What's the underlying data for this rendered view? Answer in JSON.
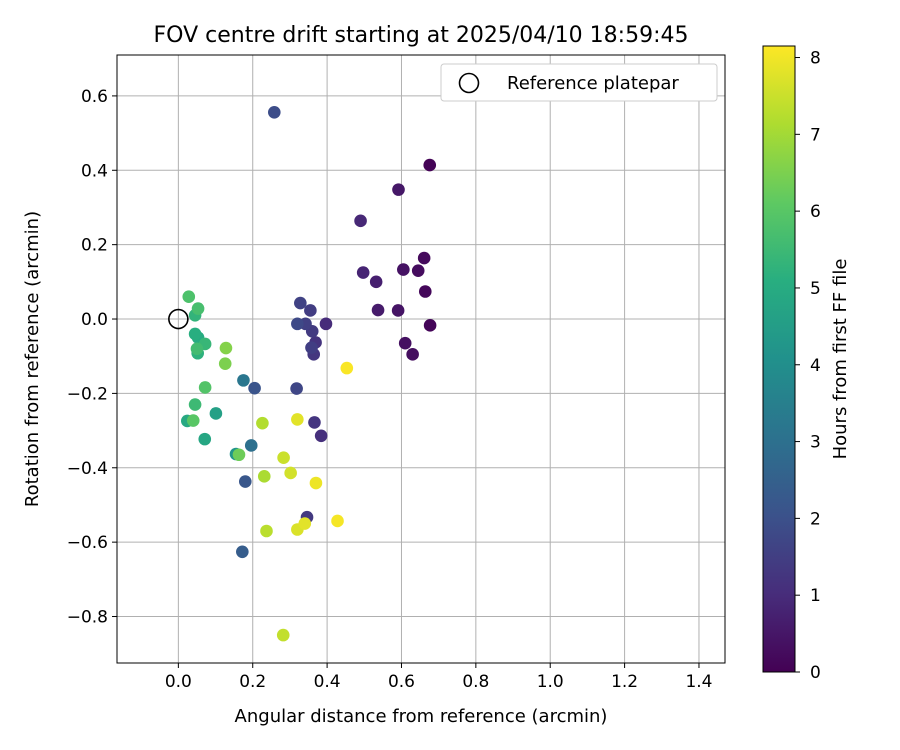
{
  "chart_data": {
    "type": "scatter",
    "title": "FOV centre drift starting at 2025/04/10 18:59:45",
    "xlabel": "Angular distance from reference (arcmin)",
    "ylabel": "Rotation from reference (arcmin)",
    "xlim": [
      -0.165,
      1.47
    ],
    "ylim": [
      -0.925,
      0.71
    ],
    "xticks": [
      0.0,
      0.2,
      0.4,
      0.6,
      0.8,
      1.0,
      1.2,
      1.4
    ],
    "xtick_labels": [
      "0.0",
      "0.2",
      "0.4",
      "0.6",
      "0.8",
      "1.0",
      "1.2",
      "1.4"
    ],
    "yticks": [
      0.6,
      0.4,
      0.2,
      0.0,
      -0.2,
      -0.4,
      -0.6,
      -0.8
    ],
    "ytick_labels": [
      "0.6",
      "0.4",
      "0.2",
      "0.0",
      "−0.2",
      "−0.4",
      "−0.6",
      "−0.8"
    ],
    "grid": true,
    "legend": {
      "placement": "top-right",
      "entries": [
        "Reference platepar"
      ]
    },
    "reference_point": {
      "x": 0.0,
      "y": 0.0,
      "label": "Reference platepar"
    },
    "colorbar": {
      "label": "Hours from first FF file",
      "colormap": "viridis",
      "range": [
        0,
        8.15
      ],
      "ticks": [
        0,
        1,
        2,
        3,
        4,
        5,
        6,
        7,
        8
      ],
      "tick_labels": [
        "0",
        "1",
        "2",
        "3",
        "4",
        "5",
        "6",
        "7",
        "8"
      ]
    },
    "points": [
      {
        "x": 0.676,
        "y": 0.414,
        "c": 0.05
      },
      {
        "x": 0.677,
        "y": -0.017,
        "c": 0.1
      },
      {
        "x": 0.664,
        "y": 0.074,
        "c": 0.15
      },
      {
        "x": 0.661,
        "y": 0.164,
        "c": 0.2
      },
      {
        "x": 0.645,
        "y": 0.13,
        "c": 0.25
      },
      {
        "x": 0.63,
        "y": -0.095,
        "c": 0.3
      },
      {
        "x": 0.61,
        "y": -0.065,
        "c": 0.35
      },
      {
        "x": 0.605,
        "y": 0.133,
        "c": 0.4
      },
      {
        "x": 0.591,
        "y": 0.023,
        "c": 0.45
      },
      {
        "x": 0.592,
        "y": 0.348,
        "c": 0.5
      },
      {
        "x": 0.537,
        "y": 0.024,
        "c": 0.6
      },
      {
        "x": 0.532,
        "y": 0.1,
        "c": 0.7
      },
      {
        "x": 0.497,
        "y": 0.125,
        "c": 0.8
      },
      {
        "x": 0.49,
        "y": 0.264,
        "c": 0.9
      },
      {
        "x": 0.397,
        "y": -0.013,
        "c": 1.0
      },
      {
        "x": 0.384,
        "y": -0.314,
        "c": 1.1
      },
      {
        "x": 0.369,
        "y": -0.063,
        "c": 1.2
      },
      {
        "x": 0.366,
        "y": -0.278,
        "c": 1.25
      },
      {
        "x": 0.364,
        "y": -0.095,
        "c": 1.3
      },
      {
        "x": 0.346,
        "y": -0.533,
        "c": 1.35
      },
      {
        "x": 0.36,
        "y": -0.033,
        "c": 1.4
      },
      {
        "x": 0.355,
        "y": 0.023,
        "c": 1.45
      },
      {
        "x": 0.358,
        "y": -0.077,
        "c": 1.5
      },
      {
        "x": 0.342,
        "y": -0.013,
        "c": 1.55
      },
      {
        "x": 0.328,
        "y": 0.043,
        "c": 1.6
      },
      {
        "x": 0.318,
        "y": -0.187,
        "c": 1.7
      },
      {
        "x": 0.32,
        "y": -0.013,
        "c": 1.8
      },
      {
        "x": 0.258,
        "y": 0.556,
        "c": 1.9
      },
      {
        "x": 0.205,
        "y": -0.186,
        "c": 2.1
      },
      {
        "x": 0.18,
        "y": -0.437,
        "c": 2.2
      },
      {
        "x": 0.172,
        "y": -0.626,
        "c": 2.4
      },
      {
        "x": 0.196,
        "y": -0.34,
        "c": 3.0
      },
      {
        "x": 0.175,
        "y": -0.165,
        "c": 3.2
      },
      {
        "x": 0.155,
        "y": -0.363,
        "c": 4.2
      },
      {
        "x": 0.101,
        "y": -0.254,
        "c": 4.6
      },
      {
        "x": 0.071,
        "y": -0.323,
        "c": 4.8
      },
      {
        "x": 0.024,
        "y": -0.274,
        "c": 4.9
      },
      {
        "x": 0.053,
        "y": -0.05,
        "c": 5.0
      },
      {
        "x": 0.045,
        "y": -0.04,
        "c": 5.1
      },
      {
        "x": 0.052,
        "y": -0.092,
        "c": 5.2
      },
      {
        "x": 0.045,
        "y": 0.01,
        "c": 5.3
      },
      {
        "x": 0.072,
        "y": -0.067,
        "c": 5.4
      },
      {
        "x": 0.045,
        "y": -0.23,
        "c": 5.5
      },
      {
        "x": 0.05,
        "y": -0.08,
        "c": 5.6
      },
      {
        "x": 0.053,
        "y": 0.028,
        "c": 5.7
      },
      {
        "x": 0.028,
        "y": 0.06,
        "c": 5.8
      },
      {
        "x": 0.072,
        "y": -0.184,
        "c": 5.9
      },
      {
        "x": 0.04,
        "y": -0.273,
        "c": 6.0
      },
      {
        "x": 0.163,
        "y": -0.365,
        "c": 6.3
      },
      {
        "x": 0.126,
        "y": -0.12,
        "c": 6.5
      },
      {
        "x": 0.128,
        "y": -0.078,
        "c": 6.6
      },
      {
        "x": 0.231,
        "y": -0.423,
        "c": 7.1
      },
      {
        "x": 0.226,
        "y": -0.28,
        "c": 7.2
      },
      {
        "x": 0.237,
        "y": -0.57,
        "c": 7.3
      },
      {
        "x": 0.282,
        "y": -0.85,
        "c": 7.4
      },
      {
        "x": 0.283,
        "y": -0.373,
        "c": 7.5
      },
      {
        "x": 0.302,
        "y": -0.414,
        "c": 7.6
      },
      {
        "x": 0.32,
        "y": -0.566,
        "c": 7.7
      },
      {
        "x": 0.34,
        "y": -0.55,
        "c": 7.8
      },
      {
        "x": 0.32,
        "y": -0.27,
        "c": 7.8
      },
      {
        "x": 0.37,
        "y": -0.441,
        "c": 7.95
      },
      {
        "x": 0.428,
        "y": -0.543,
        "c": 8.05
      },
      {
        "x": 0.453,
        "y": -0.132,
        "c": 8.1
      }
    ]
  }
}
